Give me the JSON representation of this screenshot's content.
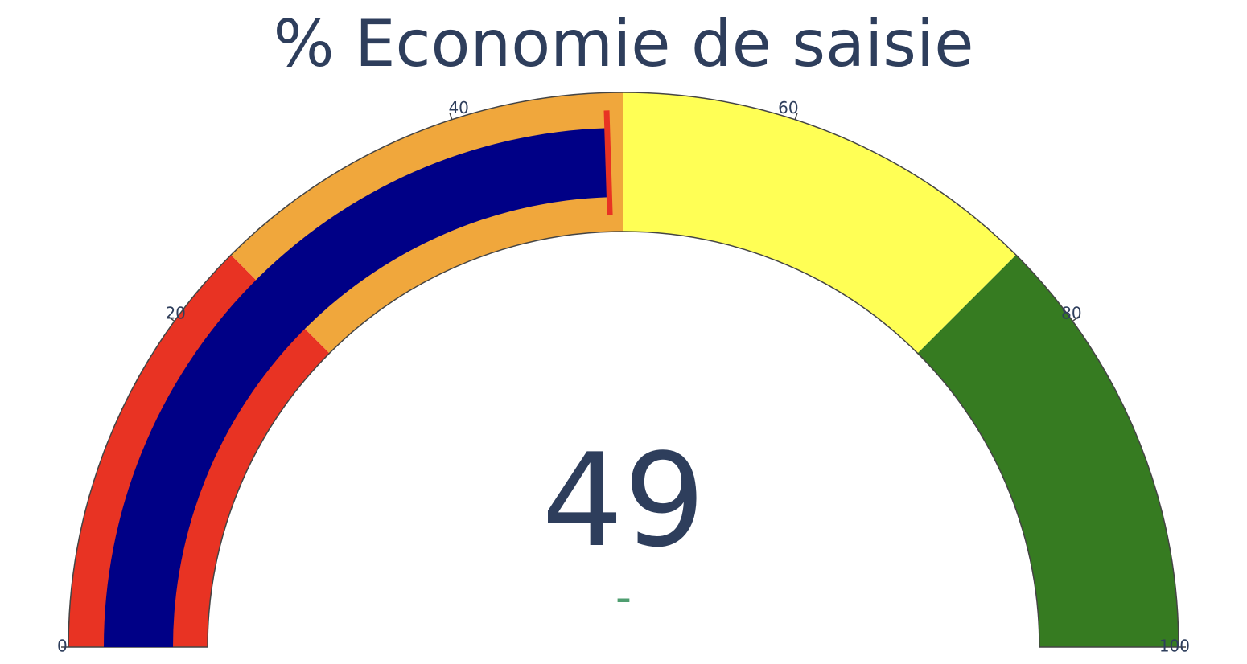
{
  "chart_data": {
    "type": "gauge",
    "title": "% Economie de saisie",
    "value": 49,
    "value_label": "49",
    "delta_label": "-",
    "axis_range": [
      0,
      100
    ],
    "ticks": [
      {
        "value": 0,
        "label": "0"
      },
      {
        "value": 20,
        "label": "20"
      },
      {
        "value": 40,
        "label": "40"
      },
      {
        "value": 60,
        "label": "60"
      },
      {
        "value": 80,
        "label": "80"
      },
      {
        "value": 100,
        "label": "100"
      }
    ],
    "steps": [
      {
        "range": [
          0,
          25
        ],
        "color": "#e83323"
      },
      {
        "range": [
          25,
          50
        ],
        "color": "#f0a73c"
      },
      {
        "range": [
          50,
          75
        ],
        "color": "#ffff55"
      },
      {
        "range": [
          75,
          100
        ],
        "color": "#367b21"
      }
    ],
    "bar_color": "#000086",
    "threshold": {
      "value": 49,
      "color": "#e83323"
    },
    "colors": {
      "text": "#2e3e5c",
      "delta": "#4f9e70",
      "outline": "#444444"
    }
  }
}
